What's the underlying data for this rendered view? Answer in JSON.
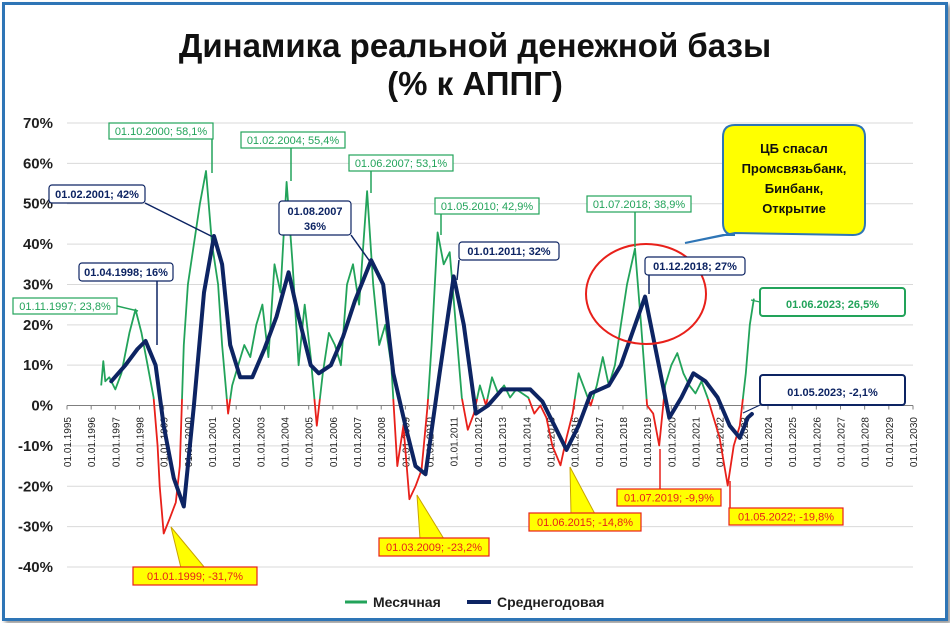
{
  "chart_data": {
    "type": "line",
    "title": "Динамика реальной денежной базы",
    "subtitle": "(% к АППГ)",
    "xlabel": "",
    "ylabel": "",
    "xlim": [
      "1995-01",
      "2030-01"
    ],
    "ylim": [
      -45,
      70
    ],
    "y_ticks": [
      "70%",
      "60%",
      "50%",
      "40%",
      "30%",
      "20%",
      "10%",
      "0%",
      "-10%",
      "-20%",
      "-30%",
      "-40%"
    ],
    "x_ticks": [
      "01.01.1995",
      "01.01.1996",
      "01.01.1997",
      "01.01.1998",
      "01.01.1999",
      "01.01.2000",
      "01.01.2001",
      "01.01.2002",
      "01.01.2003",
      "01.01.2004",
      "01.01.2005",
      "01.01.2006",
      "01.01.2007",
      "01.01.2008",
      "01.01.2009",
      "01.01.2010",
      "01.01.2011",
      "01.01.2012",
      "01.01.2013",
      "01.01.2014",
      "01.01.2015",
      "01.01.2016",
      "01.01.2017",
      "01.01.2018",
      "01.01.2019",
      "01.01.2020",
      "01.01.2021",
      "01.01.2022",
      "01.01.2023",
      "01.01.2024",
      "01.01.2025",
      "01.01.2026",
      "01.01.2027",
      "01.01.2028",
      "01.01.2029",
      "01.01.2030"
    ],
    "grid": "horizontal",
    "legend_position": "bottom",
    "colors": {
      "monthly_positive": "#22a35a",
      "monthly_negative": "#e8201a",
      "annual": "#0d2463"
    },
    "series": [
      {
        "name": "Месячная",
        "color": "#22a35a",
        "points": [
          [
            "1996-06",
            5
          ],
          [
            "1996-07",
            11
          ],
          [
            "1996-08",
            6
          ],
          [
            "1996-10",
            7
          ],
          [
            "1997-01",
            4
          ],
          [
            "1997-04",
            8
          ],
          [
            "1997-06",
            13
          ],
          [
            "1997-08",
            18
          ],
          [
            "1997-11",
            23.8
          ],
          [
            "1998-02",
            18
          ],
          [
            "1998-05",
            10
          ],
          [
            "1998-08",
            2
          ],
          [
            "1998-10",
            -10
          ],
          [
            "1998-11",
            -20
          ],
          [
            "1999-01",
            -31.7
          ],
          [
            "1999-04",
            -28
          ],
          [
            "1999-07",
            -24
          ],
          [
            "1999-09",
            -15
          ],
          [
            "1999-11",
            15
          ],
          [
            "2000-01",
            30
          ],
          [
            "2000-04",
            40
          ],
          [
            "2000-07",
            50
          ],
          [
            "2000-10",
            58.1
          ],
          [
            "2001-01",
            40
          ],
          [
            "2001-04",
            30
          ],
          [
            "2001-06",
            15
          ],
          [
            "2001-09",
            -2
          ],
          [
            "2001-11",
            5
          ],
          [
            "2002-02",
            10
          ],
          [
            "2002-05",
            15
          ],
          [
            "2002-08",
            12
          ],
          [
            "2002-11",
            20
          ],
          [
            "2003-02",
            25
          ],
          [
            "2003-05",
            12
          ],
          [
            "2003-08",
            35
          ],
          [
            "2003-11",
            28
          ],
          [
            "2004-02",
            55.4
          ],
          [
            "2004-05",
            35
          ],
          [
            "2004-08",
            10
          ],
          [
            "2004-11",
            25
          ],
          [
            "2005-02",
            12
          ],
          [
            "2005-05",
            -5
          ],
          [
            "2005-08",
            8
          ],
          [
            "2005-11",
            18
          ],
          [
            "2006-02",
            15
          ],
          [
            "2006-05",
            10
          ],
          [
            "2006-08",
            30
          ],
          [
            "2006-11",
            35
          ],
          [
            "2007-02",
            25
          ],
          [
            "2007-06",
            53.1
          ],
          [
            "2007-09",
            30
          ],
          [
            "2007-12",
            15
          ],
          [
            "2008-03",
            20
          ],
          [
            "2008-06",
            10
          ],
          [
            "2008-09",
            -15
          ],
          [
            "2008-12",
            -5
          ],
          [
            "2009-03",
            -23.2
          ],
          [
            "2009-06",
            -20
          ],
          [
            "2009-09",
            -16
          ],
          [
            "2009-12",
            0
          ],
          [
            "2010-02",
            15
          ],
          [
            "2010-05",
            42.9
          ],
          [
            "2010-08",
            35
          ],
          [
            "2010-11",
            38
          ],
          [
            "2011-02",
            20
          ],
          [
            "2011-05",
            2
          ],
          [
            "2011-08",
            -6
          ],
          [
            "2011-11",
            -2
          ],
          [
            "2012-02",
            5
          ],
          [
            "2012-05",
            0
          ],
          [
            "2012-08",
            7
          ],
          [
            "2012-11",
            3
          ],
          [
            "2013-02",
            5
          ],
          [
            "2013-05",
            2
          ],
          [
            "2013-08",
            4
          ],
          [
            "2013-11",
            3
          ],
          [
            "2014-02",
            2
          ],
          [
            "2014-05",
            -2
          ],
          [
            "2014-08",
            0
          ],
          [
            "2014-11",
            -3
          ],
          [
            "2015-02",
            -10
          ],
          [
            "2015-06",
            -14.8
          ],
          [
            "2015-09",
            -8
          ],
          [
            "2015-12",
            -2
          ],
          [
            "2016-03",
            8
          ],
          [
            "2016-06",
            4
          ],
          [
            "2016-09",
            0
          ],
          [
            "2016-12",
            5
          ],
          [
            "2017-03",
            12
          ],
          [
            "2017-06",
            5
          ],
          [
            "2017-09",
            10
          ],
          [
            "2017-12",
            20
          ],
          [
            "2018-03",
            30
          ],
          [
            "2018-07",
            38.9
          ],
          [
            "2018-10",
            20
          ],
          [
            "2019-01",
            0
          ],
          [
            "2019-04",
            -2
          ],
          [
            "2019-07",
            -9.9
          ],
          [
            "2019-10",
            5
          ],
          [
            "2020-01",
            10
          ],
          [
            "2020-04",
            13
          ],
          [
            "2020-07",
            8
          ],
          [
            "2020-10",
            5
          ],
          [
            "2021-01",
            3
          ],
          [
            "2021-04",
            6
          ],
          [
            "2021-07",
            2
          ],
          [
            "2021-10",
            -3
          ],
          [
            "2022-01",
            -8
          ],
          [
            "2022-05",
            -19.8
          ],
          [
            "2022-08",
            -10
          ],
          [
            "2022-11",
            -5
          ],
          [
            "2023-02",
            8
          ],
          [
            "2023-04",
            20
          ],
          [
            "2023-06",
            26.5
          ]
        ]
      },
      {
        "name": "Среднегодовая",
        "color": "#0d2463",
        "points": [
          [
            "1996-11",
            6
          ],
          [
            "1997-06",
            10
          ],
          [
            "1997-12",
            14
          ],
          [
            "1998-04",
            16
          ],
          [
            "1998-09",
            10
          ],
          [
            "1999-01",
            -5
          ],
          [
            "1999-06",
            -18
          ],
          [
            "1999-11",
            -25
          ],
          [
            "2000-04",
            0
          ],
          [
            "2000-09",
            28
          ],
          [
            "2001-02",
            42
          ],
          [
            "2001-06",
            35
          ],
          [
            "2001-10",
            15
          ],
          [
            "2002-03",
            7
          ],
          [
            "2002-09",
            7
          ],
          [
            "2003-03",
            14
          ],
          [
            "2003-09",
            22
          ],
          [
            "2004-03",
            33
          ],
          [
            "2004-08",
            22
          ],
          [
            "2005-02",
            10
          ],
          [
            "2005-06",
            8
          ],
          [
            "2005-12",
            10
          ],
          [
            "2006-06",
            17
          ],
          [
            "2006-12",
            26
          ],
          [
            "2007-08",
            36
          ],
          [
            "2008-02",
            30
          ],
          [
            "2008-07",
            8
          ],
          [
            "2009-01",
            -5
          ],
          [
            "2009-06",
            -15
          ],
          [
            "2009-11",
            -17
          ],
          [
            "2010-06",
            8
          ],
          [
            "2011-01",
            32
          ],
          [
            "2011-06",
            20
          ],
          [
            "2011-12",
            -2
          ],
          [
            "2012-06",
            0
          ],
          [
            "2013-01",
            4
          ],
          [
            "2013-08",
            4
          ],
          [
            "2014-03",
            4
          ],
          [
            "2014-09",
            1
          ],
          [
            "2015-03",
            -5
          ],
          [
            "2015-09",
            -11
          ],
          [
            "2016-03",
            -5
          ],
          [
            "2016-09",
            3
          ],
          [
            "2017-06",
            5
          ],
          [
            "2017-12",
            10
          ],
          [
            "2018-12",
            27
          ],
          [
            "2019-06",
            12
          ],
          [
            "2019-12",
            -3
          ],
          [
            "2020-06",
            2
          ],
          [
            "2020-12",
            8
          ],
          [
            "2021-06",
            6
          ],
          [
            "2021-12",
            2
          ],
          [
            "2022-06",
            -5
          ],
          [
            "2022-11",
            -8
          ],
          [
            "2023-03",
            -3
          ],
          [
            "2023-05",
            -2.1
          ]
        ]
      }
    ],
    "annotations": [
      {
        "text": "01.10.2000; 58,1%",
        "color": "#22a35a",
        "style": "white-box"
      },
      {
        "text": "01.02.2004; 55,4%",
        "color": "#22a35a",
        "style": "white-box"
      },
      {
        "text": "01.06.2007; 53,1%",
        "color": "#22a35a",
        "style": "white-box"
      },
      {
        "text": "01.05.2010; 42,9%",
        "color": "#22a35a",
        "style": "white-box"
      },
      {
        "text": "01.07.2018; 38,9%",
        "color": "#22a35a",
        "style": "white-box"
      },
      {
        "text": "01.11.1997; 23,8%",
        "color": "#22a35a",
        "style": "white-box"
      },
      {
        "text": "01.02.2001; 42%",
        "color": "#0d2463",
        "style": "white-box"
      },
      {
        "text": "01.04.1998; 16%",
        "color": "#0d2463",
        "style": "white-box"
      },
      {
        "text": "01.08.2007",
        "color": "#0d2463",
        "style": "white-box"
      },
      {
        "text": "36%",
        "color": "#0d2463",
        "style": "white-box"
      },
      {
        "text": "01.01.2011; 32%",
        "color": "#0d2463",
        "style": "white-box"
      },
      {
        "text": "01.12.2018; 27%",
        "color": "#0d2463",
        "style": "white-box"
      },
      {
        "text": "01.01.1999; -31,7%",
        "color": "#e8201a",
        "style": "yellow-callout"
      },
      {
        "text": "01.03.2009; -23,2%",
        "color": "#e8201a",
        "style": "yellow-callout"
      },
      {
        "text": "01.06.2015; -14,8%",
        "color": "#e8201a",
        "style": "yellow-callout"
      },
      {
        "text": "01.07.2019; -9,9%",
        "color": "#e8201a",
        "style": "yellow-box"
      },
      {
        "text": "01.05.2022; -19,8%",
        "color": "#e8201a",
        "style": "yellow-box"
      },
      {
        "text": "01.06.2023; 26,5%",
        "color": "#22a35a",
        "style": "big-box"
      },
      {
        "text": "01.05.2023; -2,1%",
        "color": "#0d2463",
        "style": "big-box"
      }
    ],
    "callout_bubble": {
      "lines": [
        "ЦБ спасал",
        "Промсвязьбанк,",
        "Бинбанк,",
        "Открытие"
      ],
      "fill": "#ffff00"
    },
    "highlight_circle": {
      "color": "#e8201a"
    }
  }
}
